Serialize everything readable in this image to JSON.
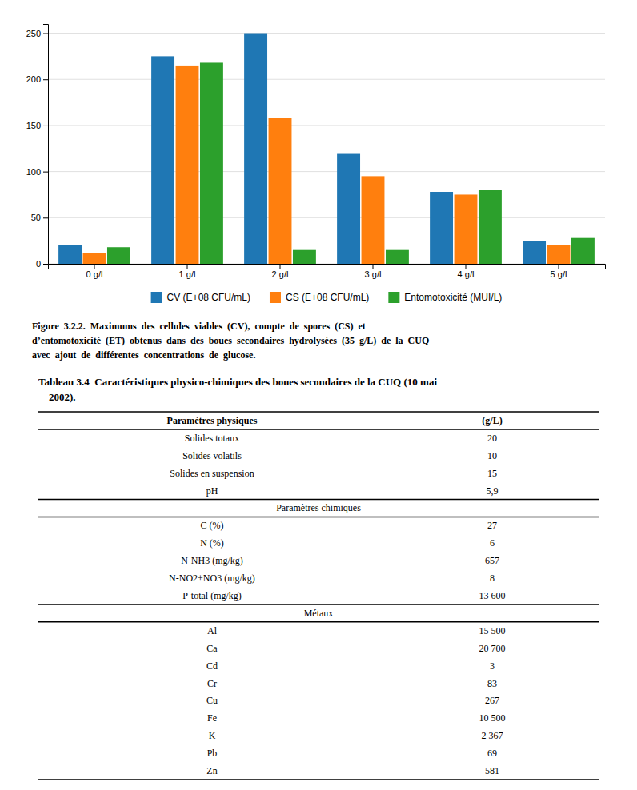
{
  "chart_data": {
    "type": "bar",
    "categories": [
      "0 g/l",
      "1 g/l",
      "2 g/l",
      "3 g/l",
      "4 g/l",
      "5 g/l"
    ],
    "series": [
      {
        "name": "CV (E+08 CFU/mL)",
        "values": [
          20,
          225,
          250,
          120,
          78,
          25
        ]
      },
      {
        "name": "CS (E+08 CFU/mL)",
        "values": [
          12,
          215,
          158,
          95,
          75,
          20
        ]
      },
      {
        "name": "Entomotoxicité (MUI/L)",
        "values": [
          18,
          218,
          15,
          15,
          80,
          28
        ]
      }
    ],
    "ylim": [
      0,
      260
    ],
    "yticks": [
      0,
      50,
      100,
      150,
      200,
      250
    ],
    "grid": true,
    "legend": "bottom",
    "annotations": [
      "Figure  3.2.2.  Maximums  des  cellules  viables  (CV),  compte  de  spores  (CS)  et",
      "d’entomotoxicité  (ET)  obtenus  dans  des  boues  secondaires  hydrolysées  (35  g/L)  de  la  CUQ",
      "avec  ajout  de  différentes  concentrations  de  glucose."
    ]
  },
  "table": {
    "title": [
      "Tableau 3.4  Caractéristiques physico-chimiques des boues secondaires de la CUQ (10 mai",
      "    2002)."
    ],
    "header": [
      "Paramètres physiques",
      "(g/L)"
    ],
    "sections": [
      {
        "rows": [
          [
            "Solides totaux",
            "20"
          ],
          [
            "Solides volatils",
            "10"
          ],
          [
            "Solides en suspension",
            "15"
          ],
          [
            "pH",
            "5,9"
          ]
        ]
      },
      {
        "header": "Paramètres chimiques",
        "rows": [
          [
            "C (%)",
            "27"
          ],
          [
            "N (%)",
            "6"
          ],
          [
            "N-NH3 (mg/kg)",
            "657"
          ],
          [
            "N-NO2+NO3 (mg/kg)",
            "8"
          ],
          [
            "P-total (mg/kg)",
            "13 600"
          ]
        ]
      },
      {
        "header": "Métaux",
        "rows": [
          [
            "Al",
            "15 500"
          ],
          [
            "Ca",
            "20 700"
          ],
          [
            "Cd",
            "3"
          ],
          [
            "Cr",
            "83"
          ],
          [
            "Cu",
            "267"
          ],
          [
            "Fe",
            "10 500"
          ],
          [
            "K",
            "2 367"
          ],
          [
            "Pb",
            "69"
          ],
          [
            "Zn",
            "581"
          ]
        ]
      }
    ]
  }
}
